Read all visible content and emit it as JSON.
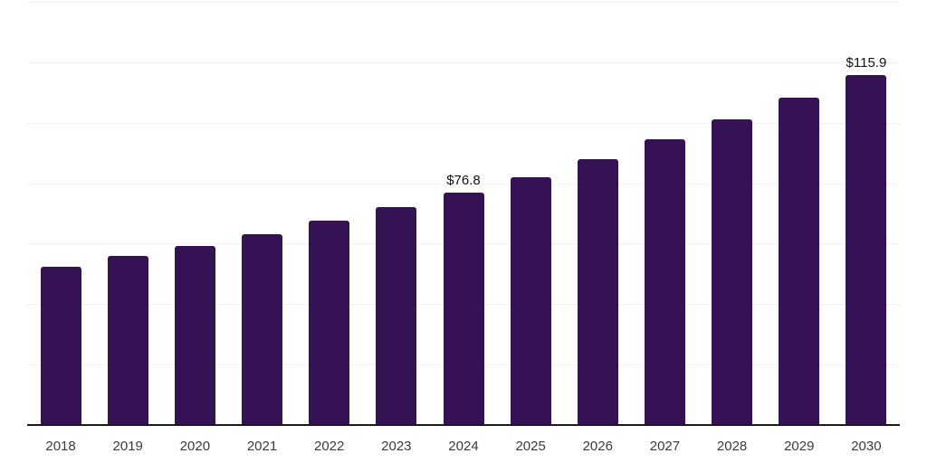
{
  "chart_data": {
    "type": "bar",
    "title": "",
    "xlabel": "",
    "ylabel": "",
    "categories": [
      "2018",
      "2019",
      "2020",
      "2021",
      "2022",
      "2023",
      "2024",
      "2025",
      "2026",
      "2027",
      "2028",
      "2029",
      "2030"
    ],
    "values": [
      52.3,
      55.8,
      59.3,
      63.1,
      67.5,
      72.0,
      76.8,
      82.0,
      88.0,
      94.5,
      101.0,
      108.2,
      115.9
    ],
    "data_labels": [
      "",
      "",
      "",
      "",
      "",
      "",
      "$76.8",
      "",
      "",
      "",
      "",
      "",
      "$115.9"
    ],
    "ylim": [
      0,
      140
    ],
    "grid_step": 20,
    "grid": "horizontal-only",
    "legend": "none",
    "y_axis_labels": "none"
  },
  "colors": {
    "bar": "#351253",
    "gridline": "#f2f2f2",
    "axis": "#1a1a1a",
    "tick_label": "#3a3a3a",
    "value_label": "#111111",
    "background": "#ffffff"
  }
}
